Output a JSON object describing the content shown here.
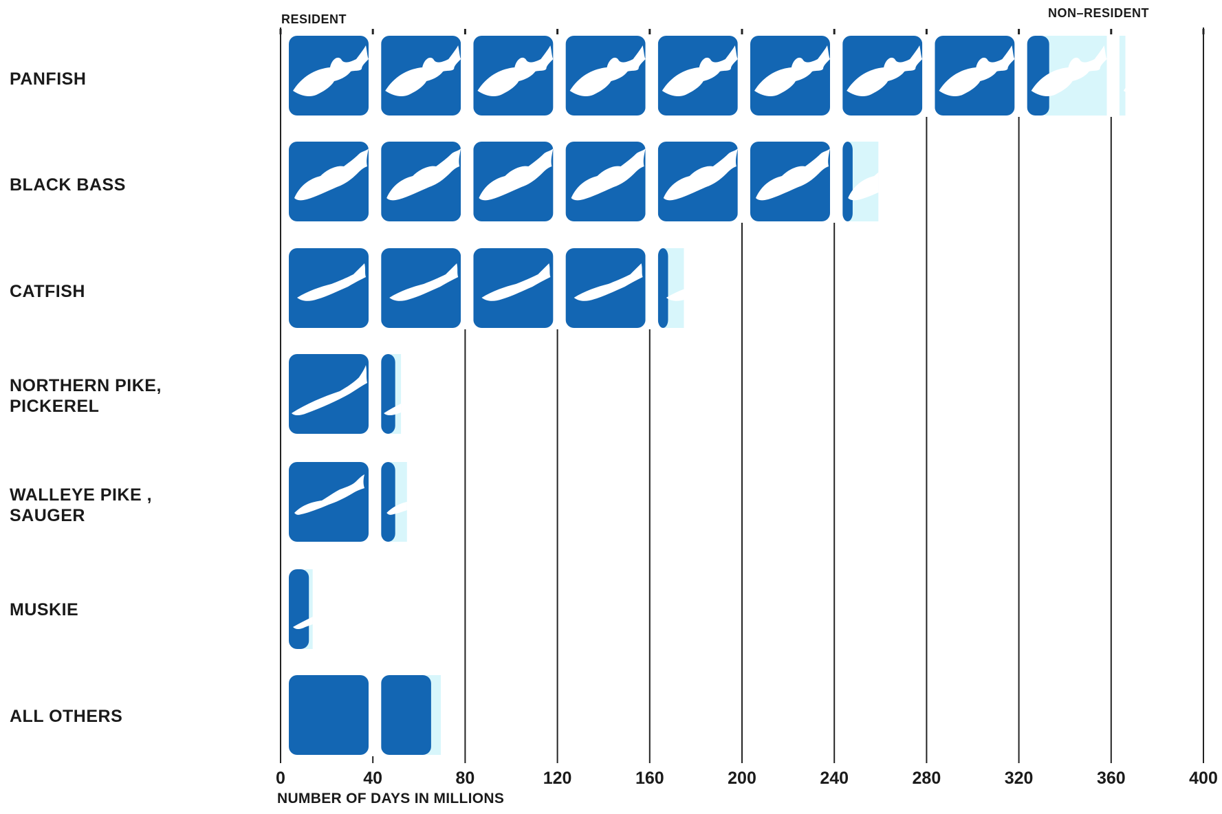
{
  "chart_data": {
    "type": "bar",
    "orientation": "horizontal",
    "stacked": true,
    "xlabel": "NUMBER OF DAYS IN MILLIONS",
    "xlim": [
      0,
      400
    ],
    "xticks": [
      0,
      40,
      80,
      120,
      160,
      200,
      240,
      280,
      320,
      360,
      400
    ],
    "unit_per_symbol": 40,
    "categories": [
      "PANFISH",
      "BLACK BASS",
      "CATFISH",
      "NORTHERN PIKE, PICKEREL",
      "WALLEYE PIKE , SAUGER",
      "MUSKIE",
      "ALL OTHERS"
    ],
    "category_lines": [
      [
        "PANFISH"
      ],
      [
        "BLACK BASS"
      ],
      [
        "CATFISH"
      ],
      [
        "NORTHERN PIKE,",
        "PICKEREL"
      ],
      [
        "WALLEYE PIKE ,",
        "SAUGER"
      ],
      [
        "MUSKIE"
      ],
      [
        "ALL OTHERS"
      ]
    ],
    "icons": [
      "panfish-icon",
      "black-bass-icon",
      "catfish-icon",
      "northern-pike-icon",
      "walleye-icon",
      "muskie-icon",
      "none"
    ],
    "series": [
      {
        "name": "RESIDENT",
        "color": "#1366b3",
        "values": [
          329,
          243,
          163,
          45,
          45,
          8,
          63
        ]
      },
      {
        "name": "NON-RESIDENT",
        "color": "#d8f6fb",
        "values": [
          34,
          15,
          10,
          5,
          8,
          4,
          7
        ]
      }
    ],
    "legend": {
      "resident_label": "RESIDENT",
      "nonresident_label": "NON–RESIDENT"
    }
  }
}
